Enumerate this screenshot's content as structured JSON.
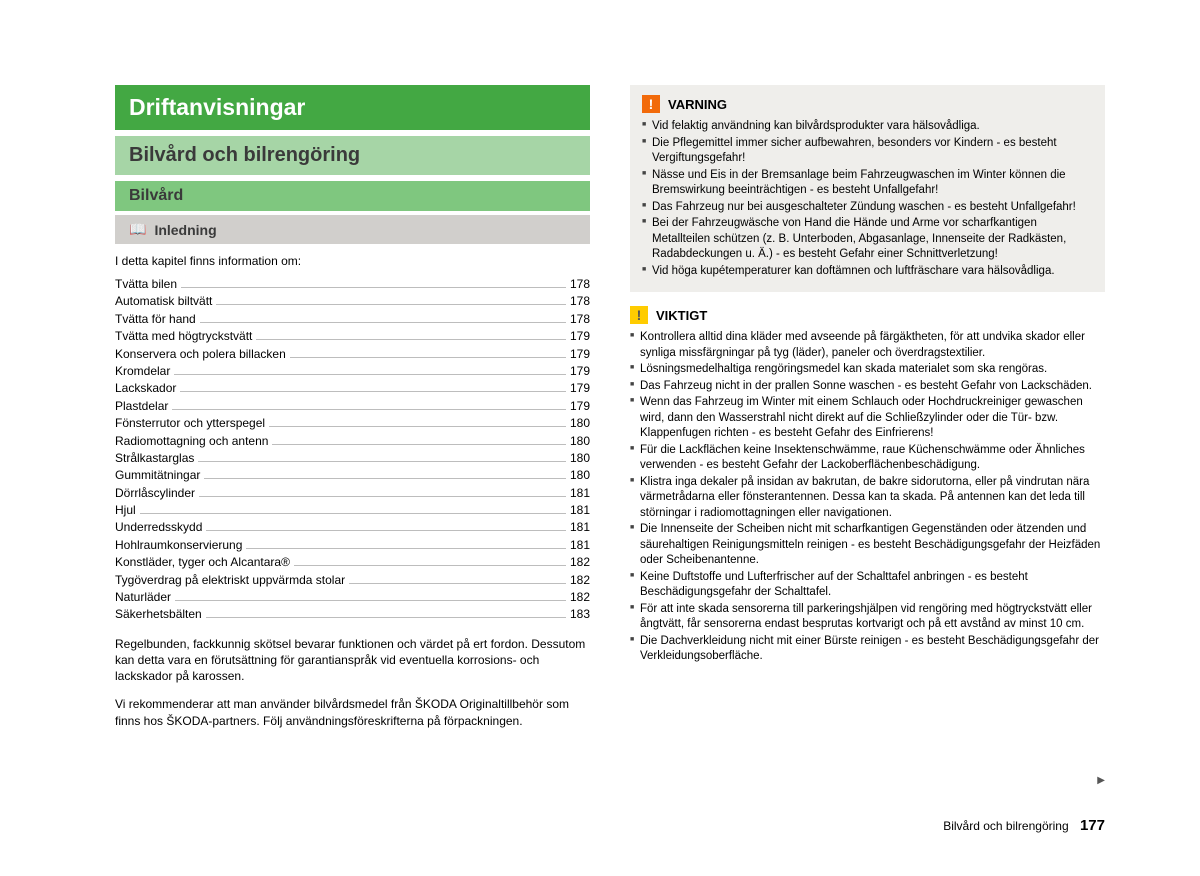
{
  "left": {
    "h1": "Driftanvisningar",
    "h2": "Bilvård och bilrengöring",
    "h3": "Bilvård",
    "h4": "Inledning",
    "intro": "I detta kapitel finns information om:",
    "toc": [
      {
        "label": "Tvätta bilen",
        "page": "178"
      },
      {
        "label": "Automatisk biltvätt",
        "page": "178"
      },
      {
        "label": "Tvätta för hand",
        "page": "178"
      },
      {
        "label": "Tvätta med högtryckstvätt",
        "page": "179"
      },
      {
        "label": "Konservera och polera billacken",
        "page": "179"
      },
      {
        "label": "Kromdelar",
        "page": "179"
      },
      {
        "label": "Lackskador",
        "page": "179"
      },
      {
        "label": "Plastdelar",
        "page": "179"
      },
      {
        "label": "Fönsterrutor och ytterspegel",
        "page": "180"
      },
      {
        "label": "Radiomottagning och antenn",
        "page": "180"
      },
      {
        "label": "Strålkastarglas",
        "page": "180"
      },
      {
        "label": "Gummitätningar",
        "page": "180"
      },
      {
        "label": "Dörrlåscylinder",
        "page": "181"
      },
      {
        "label": "Hjul",
        "page": "181"
      },
      {
        "label": "Underredsskydd",
        "page": "181"
      },
      {
        "label": "Hohlraumkonservierung",
        "page": "181"
      },
      {
        "label": "Konstläder, tyger och Alcantara®",
        "page": "182"
      },
      {
        "label": "Tygöverdrag på elektriskt uppvärmda stolar",
        "page": "182"
      },
      {
        "label": "Naturläder",
        "page": "182"
      },
      {
        "label": "Säkerhetsbälten",
        "page": "183"
      }
    ],
    "p1": "Regelbunden, fackkunnig skötsel bevarar funktionen och värdet på ert fordon. Dessutom kan detta vara en förutsättning för garantianspråk vid eventuella korrosions- och lackskador på karossen.",
    "p2": "Vi rekommenderar att man använder bilvårdsmedel från ŠKODA Originaltillbehör som finns hos ŠKODA-partners. Följ användningsföreskrifterna på förpackningen."
  },
  "warning": {
    "title": "VARNING",
    "iconColor": "#f26a0a",
    "bgColor": "#efeeeb",
    "items": [
      "Vid felaktig användning kan bilvårdsprodukter vara hälsovådliga.",
      "Die Pflegemittel immer sicher aufbewahren, besonders vor Kindern - es besteht Vergiftungsgefahr!",
      "Nässe und Eis in der Bremsanlage beim Fahrzeugwaschen im Winter können die Bremswirkung beeinträchtigen - es besteht Unfallgefahr!",
      "Das Fahrzeug nur bei ausgeschalteter Zündung waschen - es besteht Unfallgefahr!",
      "Bei der Fahrzeugwäsche von Hand die Hände und Arme vor scharfkantigen Metallteilen schützen (z. B. Unterboden, Abgasanlage, Innenseite der Radkästen, Radabdeckungen u. Ä.) - es besteht Gefahr einer Schnittverletzung!",
      "Vid höga kupétemperaturer kan doftämnen och luftfräschare vara hälsovådliga."
    ]
  },
  "important": {
    "title": "VIKTIGT",
    "iconColor": "#ffcc00",
    "items": [
      "Kontrollera alltid dina kläder med avseende på färgäktheten, för att undvika skador eller synliga missfärgningar på tyg (läder), paneler och överdragstextilier.",
      "Lösningsmedelhaltiga rengöringsmedel kan skada materialet som ska rengöras.",
      "Das Fahrzeug nicht in der prallen Sonne waschen - es besteht Gefahr von Lackschäden.",
      "Wenn das Fahrzeug im Winter mit einem Schlauch oder Hochdruckreiniger gewaschen wird, dann den Wasserstrahl nicht direkt auf die Schließzylinder oder die Tür- bzw. Klappenfugen richten - es besteht Gefahr des Einfrierens!",
      "Für die Lackflächen keine Insektenschwämme, raue Küchenschwämme oder Ähnliches verwenden - es besteht Gefahr der Lackoberflächenbeschädigung.",
      "Klistra inga dekaler på insidan av bakrutan, de bakre sidorutorna, eller på vindrutan nära värmetrådarna eller fönsterantennen. Dessa kan ta skada. På antennen kan det leda till störningar i radiomottagningen eller navigationen.",
      "Die Innenseite der Scheiben nicht mit scharfkantigen Gegenständen oder ätzenden und säurehaltigen Reinigungsmitteln reinigen - es besteht Beschädigungsgefahr der Heizfäden oder Scheibenantenne.",
      "Keine Duftstoffe und Lufterfrischer auf der Schalttafel anbringen - es besteht Beschädigungsgefahr der Schalttafel.",
      "För att inte skada sensorerna till parkeringshjälpen vid rengöring med högtryckstvätt eller ångtvätt, får sensorerna endast besprutas kortvarigt och på ett avstånd av minst 10 cm.",
      "Die Dachverkleidung nicht mit einer Bürste reinigen - es besteht Beschädigungsgefahr der Verkleidungsoberfläche."
    ]
  },
  "footer": {
    "section": "Bilvård och bilrengöring",
    "page": "177"
  },
  "colors": {
    "green": "#43a843",
    "lightgreen": "#a6d5a6",
    "midgreen": "#7fc77f",
    "grey": "#d1cfcc",
    "boxgrey": "#efeeeb"
  }
}
